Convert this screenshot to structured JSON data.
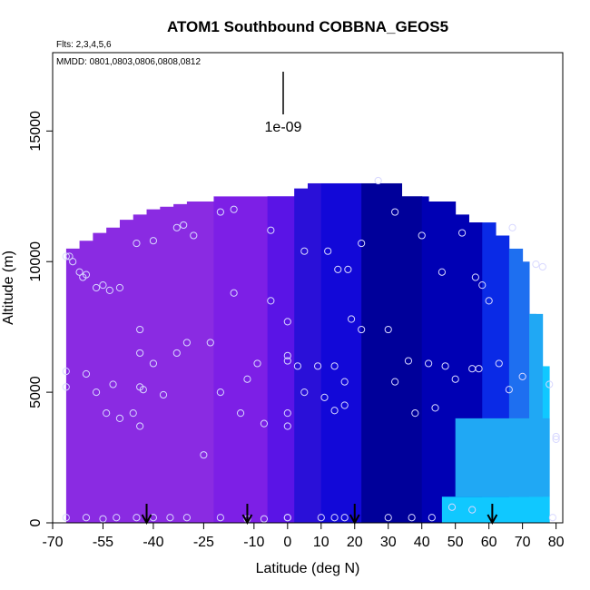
{
  "chart_data": {
    "type": "heatmap",
    "title": "ATOM1 Southbound COBBNA_GEOS5",
    "subtitle": "Flts: 2,3,4,5,6",
    "annotation": "MMDD: 0801,0803,0806,0808,0812",
    "scale_label": "1e-09",
    "xlabel": "Latitude (deg N)",
    "ylabel": "Altitude (m)",
    "xlim": [
      -70,
      82
    ],
    "ylim": [
      0,
      18000
    ],
    "x_ticks": [
      -70,
      -55,
      -40,
      -25,
      -10,
      0,
      10,
      20,
      30,
      40,
      50,
      60,
      70,
      80
    ],
    "x_tick_labels": [
      "-70",
      "-55",
      "-40",
      "-25",
      "-10",
      "0",
      "10",
      "20",
      "30",
      "40",
      "50",
      "60",
      "70",
      "80"
    ],
    "y_ticks": [
      0,
      5000,
      10000,
      15000
    ],
    "y_tick_labels": [
      "0",
      "5000",
      "10000",
      "15000"
    ],
    "colors": {
      "purple": "#8a2be2",
      "violet": "#7d1fe6",
      "blue_violet": "#5a14e6",
      "medium_blue": "#2a10d8",
      "blue": "#1208d8",
      "dark_blue": "#0000b4",
      "navy": "#00009a",
      "royal": "#0a2ae6",
      "azure": "#1e6ff0",
      "light_blue": "#20a8f4",
      "cyan": "#10c8ff",
      "point_stroke": "#d8d8ff"
    },
    "columns": [
      {
        "x0": -66,
        "x1": -62,
        "top": 10500
      },
      {
        "x0": -62,
        "x1": -58,
        "top": 10800
      },
      {
        "x0": -58,
        "x1": -54,
        "top": 11100
      },
      {
        "x0": -54,
        "x1": -50,
        "top": 11300
      },
      {
        "x0": -50,
        "x1": -46,
        "top": 11600
      },
      {
        "x0": -46,
        "x1": -42,
        "top": 11800
      },
      {
        "x0": -42,
        "x1": -38,
        "top": 12000
      },
      {
        "x0": -38,
        "x1": -34,
        "top": 12100
      },
      {
        "x0": -34,
        "x1": -30,
        "top": 12200
      },
      {
        "x0": -30,
        "x1": -26,
        "top": 12300
      },
      {
        "x0": -26,
        "x1": -22,
        "top": 12300
      },
      {
        "x0": -22,
        "x1": -18,
        "top": 12500
      },
      {
        "x0": -18,
        "x1": -14,
        "top": 12500
      },
      {
        "x0": -14,
        "x1": -10,
        "top": 12500
      },
      {
        "x0": -10,
        "x1": -6,
        "top": 12500
      },
      {
        "x0": -6,
        "x1": -2,
        "top": 12500
      },
      {
        "x0": -2,
        "x1": 2,
        "top": 12500
      },
      {
        "x0": 2,
        "x1": 6,
        "top": 12800
      },
      {
        "x0": 6,
        "x1": 10,
        "top": 13000
      },
      {
        "x0": 10,
        "x1": 14,
        "top": 13000
      },
      {
        "x0": 14,
        "x1": 18,
        "top": 13000
      },
      {
        "x0": 18,
        "x1": 22,
        "top": 13000
      },
      {
        "x0": 22,
        "x1": 26,
        "top": 13000
      },
      {
        "x0": 26,
        "x1": 30,
        "top": 13000
      },
      {
        "x0": 30,
        "x1": 34,
        "top": 13000
      },
      {
        "x0": 34,
        "x1": 38,
        "top": 12500
      },
      {
        "x0": 38,
        "x1": 42,
        "top": 12500
      },
      {
        "x0": 42,
        "x1": 46,
        "top": 12300
      },
      {
        "x0": 46,
        "x1": 50,
        "top": 12300
      },
      {
        "x0": 50,
        "x1": 54,
        "top": 11800
      },
      {
        "x0": 54,
        "x1": 58,
        "top": 11500
      },
      {
        "x0": 58,
        "x1": 62,
        "top": 11500
      },
      {
        "x0": 62,
        "x1": 66,
        "top": 11000
      },
      {
        "x0": 66,
        "x1": 70,
        "top": 10500
      },
      {
        "x0": 70,
        "x1": 74,
        "top": 10000
      },
      {
        "x0": 74,
        "x1": 76,
        "top": 8000
      },
      {
        "x0": 76,
        "x1": 78,
        "top": 6000
      }
    ],
    "regions": [
      {
        "name": "south-purple",
        "x0": -66,
        "x1": -22,
        "y0": 0,
        "y1": 12500,
        "color": "#8a2be2"
      },
      {
        "name": "mid-violet",
        "x0": -22,
        "x1": -6,
        "y0": 0,
        "y1": 12500,
        "color": "#7d1fe6"
      },
      {
        "name": "mid-blue-violet",
        "x0": -6,
        "x1": 2,
        "y0": 0,
        "y1": 12800,
        "color": "#5a14e6"
      },
      {
        "name": "equator-blue",
        "x0": 2,
        "x1": 10,
        "y0": 0,
        "y1": 13000,
        "color": "#2a10d8"
      },
      {
        "name": "north-blue",
        "x0": 10,
        "x1": 22,
        "y0": 0,
        "y1": 13000,
        "color": "#1208d8"
      },
      {
        "name": "north-dark",
        "x0": 22,
        "x1": 40,
        "y0": 0,
        "y1": 13000,
        "color": "#00009a"
      },
      {
        "name": "north-deep",
        "x0": 40,
        "x1": 58,
        "y0": 0,
        "y1": 12500,
        "color": "#0000b4"
      },
      {
        "name": "subarctic-royal",
        "x0": 58,
        "x1": 66,
        "y0": 0,
        "y1": 11500,
        "color": "#0a2ae6"
      },
      {
        "name": "arctic-azure",
        "x0": 66,
        "x1": 72,
        "y0": 0,
        "y1": 10500,
        "color": "#1e6ff0"
      },
      {
        "name": "arctic-light",
        "x0": 72,
        "x1": 76,
        "y0": 0,
        "y1": 8000,
        "color": "#20a8f4"
      },
      {
        "name": "arctic-cyan",
        "x0": 76,
        "x1": 78,
        "y0": 0,
        "y1": 6000,
        "color": "#10c8ff"
      },
      {
        "name": "low-cyan",
        "x0": 46,
        "x1": 78,
        "y0": 0,
        "y1": 1000,
        "color": "#10c8ff"
      },
      {
        "name": "low-light",
        "x0": 50,
        "x1": 78,
        "y0": 1000,
        "y1": 4000,
        "color": "#20a8f4"
      }
    ],
    "points": [
      {
        "x": -66,
        "y": 10200
      },
      {
        "x": -65,
        "y": 10200
      },
      {
        "x": -64,
        "y": 10000
      },
      {
        "x": -62,
        "y": 9600
      },
      {
        "x": -61,
        "y": 9400
      },
      {
        "x": -60,
        "y": 9500
      },
      {
        "x": -57,
        "y": 9000
      },
      {
        "x": -55,
        "y": 9100
      },
      {
        "x": -53,
        "y": 8900
      },
      {
        "x": -50,
        "y": 9000
      },
      {
        "x": -45,
        "y": 10700
      },
      {
        "x": -40,
        "y": 10800
      },
      {
        "x": -33,
        "y": 11300
      },
      {
        "x": -31,
        "y": 11400
      },
      {
        "x": -28,
        "y": 11000
      },
      {
        "x": -20,
        "y": 11900
      },
      {
        "x": -16,
        "y": 12000
      },
      {
        "x": -5,
        "y": 11200
      },
      {
        "x": 5,
        "y": 10400
      },
      {
        "x": 12,
        "y": 10400
      },
      {
        "x": 15,
        "y": 9700
      },
      {
        "x": 18,
        "y": 9700
      },
      {
        "x": 22,
        "y": 10700
      },
      {
        "x": 27,
        "y": 13100
      },
      {
        "x": 32,
        "y": 11900
      },
      {
        "x": 40,
        "y": 11000
      },
      {
        "x": 46,
        "y": 9600
      },
      {
        "x": 52,
        "y": 11100
      },
      {
        "x": 56,
        "y": 9400
      },
      {
        "x": 58,
        "y": 9100
      },
      {
        "x": 60,
        "y": 8500
      },
      {
        "x": 67,
        "y": 11300
      },
      {
        "x": 74,
        "y": 9900
      },
      {
        "x": 76,
        "y": 9800
      },
      {
        "x": -66,
        "y": 5800
      },
      {
        "x": -66,
        "y": 5200
      },
      {
        "x": -60,
        "y": 5700
      },
      {
        "x": -57,
        "y": 5000
      },
      {
        "x": -54,
        "y": 4200
      },
      {
        "x": -52,
        "y": 5300
      },
      {
        "x": -50,
        "y": 4000
      },
      {
        "x": -46,
        "y": 4200
      },
      {
        "x": -44,
        "y": 5200
      },
      {
        "x": -43,
        "y": 5100
      },
      {
        "x": -44,
        "y": 3700
      },
      {
        "x": -44,
        "y": 6500
      },
      {
        "x": -44,
        "y": 7400
      },
      {
        "x": -40,
        "y": 6100
      },
      {
        "x": -37,
        "y": 4900
      },
      {
        "x": -33,
        "y": 6500
      },
      {
        "x": -30,
        "y": 6900
      },
      {
        "x": -23,
        "y": 6900
      },
      {
        "x": -20,
        "y": 5000
      },
      {
        "x": -16,
        "y": 8800
      },
      {
        "x": -14,
        "y": 4200
      },
      {
        "x": -12,
        "y": 5500
      },
      {
        "x": -9,
        "y": 6100
      },
      {
        "x": -7,
        "y": 3800
      },
      {
        "x": -5,
        "y": 8500
      },
      {
        "x": 0,
        "y": 7700
      },
      {
        "x": 0,
        "y": 6400
      },
      {
        "x": 0,
        "y": 6200
      },
      {
        "x": 3,
        "y": 6000
      },
      {
        "x": 0,
        "y": 4200
      },
      {
        "x": 0,
        "y": 3700
      },
      {
        "x": 5,
        "y": 5000
      },
      {
        "x": 9,
        "y": 6000
      },
      {
        "x": 11,
        "y": 4800
      },
      {
        "x": 14,
        "y": 6000
      },
      {
        "x": 14,
        "y": 4300
      },
      {
        "x": 17,
        "y": 5400
      },
      {
        "x": 17,
        "y": 4500
      },
      {
        "x": 19,
        "y": 7800
      },
      {
        "x": 22,
        "y": 7400
      },
      {
        "x": 30,
        "y": 7400
      },
      {
        "x": 32,
        "y": 5400
      },
      {
        "x": 36,
        "y": 6200
      },
      {
        "x": 38,
        "y": 4200
      },
      {
        "x": 42,
        "y": 6100
      },
      {
        "x": 44,
        "y": 4400
      },
      {
        "x": 47,
        "y": 6000
      },
      {
        "x": 50,
        "y": 5500
      },
      {
        "x": 55,
        "y": 5900
      },
      {
        "x": 57,
        "y": 5900
      },
      {
        "x": 63,
        "y": 6100
      },
      {
        "x": 66,
        "y": 5100
      },
      {
        "x": 70,
        "y": 5600
      },
      {
        "x": 78,
        "y": 5300
      },
      {
        "x": -25,
        "y": 2600
      },
      {
        "x": -66,
        "y": 200
      },
      {
        "x": -60,
        "y": 200
      },
      {
        "x": -55,
        "y": 150
      },
      {
        "x": -51,
        "y": 200
      },
      {
        "x": -45,
        "y": 200
      },
      {
        "x": -40,
        "y": 200
      },
      {
        "x": -35,
        "y": 200
      },
      {
        "x": -30,
        "y": 200
      },
      {
        "x": -20,
        "y": 200
      },
      {
        "x": -12,
        "y": 150
      },
      {
        "x": -7,
        "y": 150
      },
      {
        "x": 0,
        "y": 200
      },
      {
        "x": 0,
        "y": 200
      },
      {
        "x": 10,
        "y": 200
      },
      {
        "x": 14,
        "y": 200
      },
      {
        "x": 17,
        "y": 200
      },
      {
        "x": 30,
        "y": 200
      },
      {
        "x": 37,
        "y": 200
      },
      {
        "x": 43,
        "y": 200
      },
      {
        "x": 49,
        "y": 600
      },
      {
        "x": 55,
        "y": 500
      },
      {
        "x": 79,
        "y": 200
      },
      {
        "x": 80,
        "y": 3300
      },
      {
        "x": 80,
        "y": 3200
      }
    ],
    "arrows": [
      -42,
      -12,
      20,
      61
    ]
  }
}
